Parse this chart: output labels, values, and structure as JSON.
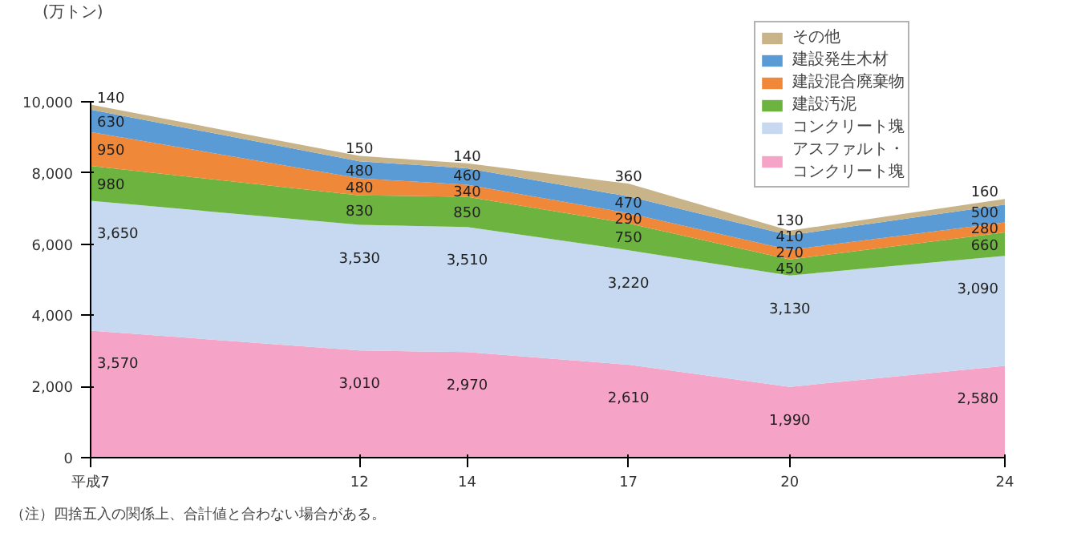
{
  "chart_data": {
    "type": "area",
    "stacked": true,
    "ylabel": "(万トン)",
    "x": [
      7,
      12,
      14,
      17,
      20,
      24
    ],
    "xlim": [
      7,
      24
    ],
    "xticks": [
      {
        "value": 7,
        "label": "平成7"
      },
      12,
      14,
      17,
      20,
      24
    ],
    "ylim": [
      0,
      10000
    ],
    "yticks": [
      {
        "value": 0,
        "label": "0"
      },
      {
        "value": 2000,
        "label": "2,000"
      },
      {
        "value": 4000,
        "label": "4,000"
      },
      {
        "value": 6000,
        "label": "6,000"
      },
      {
        "value": 8000,
        "label": "8,000"
      },
      {
        "value": 10000,
        "label": "10,000"
      }
    ],
    "series": [
      {
        "name": "アスファルト・コンクリート塊",
        "color": "#f5a3c7",
        "values": [
          3570,
          3010,
          2970,
          2610,
          1990,
          2580
        ],
        "value_labels": [
          "3,570",
          "3,010",
          "2,970",
          "2,610",
          "1,990",
          "2,580"
        ]
      },
      {
        "name": "コンクリート塊",
        "color": "#c6d9f0",
        "values": [
          3650,
          3530,
          3510,
          3220,
          3130,
          3090
        ],
        "value_labels": [
          "3,650",
          "3,530",
          "3,510",
          "3,220",
          "3,130",
          "3,090"
        ]
      },
      {
        "name": "建設汚泥",
        "color": "#6cb33f",
        "values": [
          980,
          830,
          850,
          750,
          450,
          660
        ],
        "value_labels": [
          "980",
          "830",
          "850",
          "750",
          "450",
          "660"
        ]
      },
      {
        "name": "建設混合廃棄物",
        "color": "#f0883a",
        "values": [
          950,
          480,
          340,
          290,
          270,
          280
        ],
        "value_labels": [
          "950",
          "480",
          "340",
          "290",
          "270",
          "280"
        ]
      },
      {
        "name": "建設発生木材",
        "color": "#5b9bd5",
        "values": [
          630,
          480,
          460,
          470,
          410,
          500
        ],
        "value_labels": [
          "630",
          "480",
          "460",
          "470",
          "410",
          "500"
        ]
      },
      {
        "name": "その他",
        "color": "#c9b48a",
        "values": [
          140,
          150,
          140,
          360,
          130,
          160
        ],
        "value_labels": [
          "140",
          "150",
          "140",
          "360",
          "130",
          "160"
        ]
      }
    ],
    "grid": false,
    "legend": "top right",
    "annotations": [
      "（注）四捨五入の関係上、合計値と合わない場合がある。"
    ]
  }
}
